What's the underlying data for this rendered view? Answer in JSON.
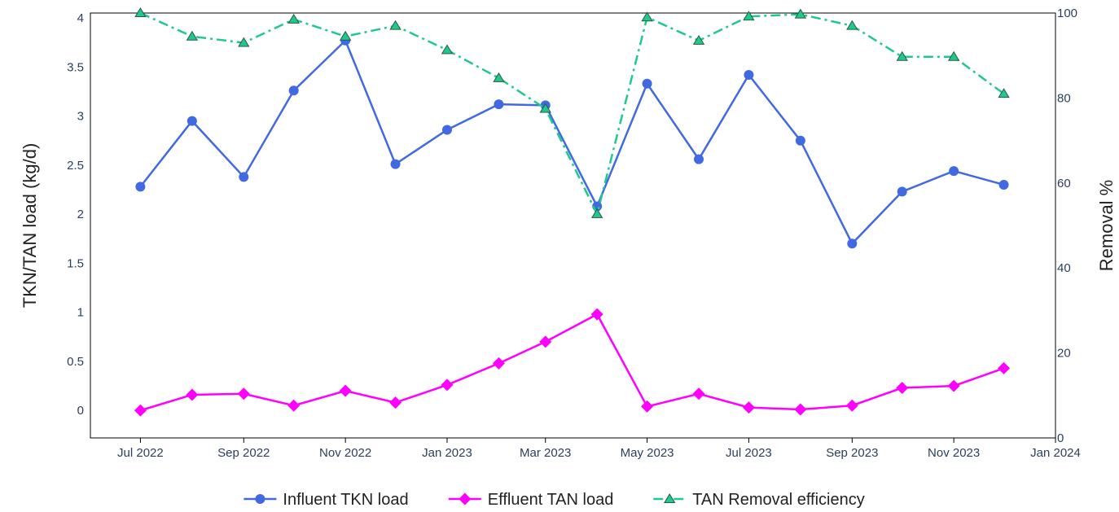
{
  "chart_data": {
    "type": "line",
    "x": [
      "2022-07-01",
      "2022-08-01",
      "2022-09-01",
      "2022-10-01",
      "2022-11-01",
      "2022-12-01",
      "2023-01-01",
      "2023-02-01",
      "2023-03-01",
      "2023-04-01",
      "2023-05-01",
      "2023-06-01",
      "2023-07-01",
      "2023-08-01",
      "2023-09-01",
      "2023-10-01",
      "2023-11-01",
      "2023-12-01"
    ],
    "x_range": [
      "2022-06-01",
      "2024-01-01"
    ],
    "x_ticks": [
      {
        "date": "2022-07-01",
        "label": "Jul 2022"
      },
      {
        "date": "2022-09-01",
        "label": "Sep 2022"
      },
      {
        "date": "2022-11-01",
        "label": "Nov 2022"
      },
      {
        "date": "2023-01-01",
        "label": "Jan 2023"
      },
      {
        "date": "2023-03-01",
        "label": "Mar 2023"
      },
      {
        "date": "2023-05-01",
        "label": "May 2023"
      },
      {
        "date": "2023-07-01",
        "label": "Jul 2023"
      },
      {
        "date": "2023-09-01",
        "label": "Sep 2023"
      },
      {
        "date": "2023-11-01",
        "label": "Nov 2023"
      },
      {
        "date": "2024-01-01",
        "label": "Jan 2024"
      }
    ],
    "ylabel": "TKN/TAN load (kg/d)",
    "ylim": [
      -0.28,
      4.05
    ],
    "yticks": [
      0,
      0.5,
      1,
      1.5,
      2,
      2.5,
      3,
      3.5,
      4
    ],
    "ytick_labels": [
      "0",
      "0.5",
      "1",
      "1.5",
      "2",
      "2.5",
      "3",
      "3.5",
      "4"
    ],
    "y2label": "Removal %",
    "y2lim": [
      0,
      100
    ],
    "y2ticks": [
      0,
      20,
      40,
      60,
      80,
      100
    ],
    "y2tick_labels": [
      "0",
      "20",
      "40",
      "60",
      "80",
      "100"
    ],
    "grid": false,
    "legend": "bottom-center",
    "series": [
      {
        "name": "Influent TKN load",
        "axis": "y",
        "color": "#4169e1",
        "marker": "circle",
        "dash": "solid",
        "values": [
          2.28,
          2.95,
          2.38,
          3.26,
          3.77,
          2.51,
          2.86,
          3.12,
          3.11,
          2.08,
          3.33,
          2.56,
          3.42,
          2.75,
          1.7,
          2.23,
          2.44,
          2.3
        ]
      },
      {
        "name": "Effluent TAN load",
        "axis": "y",
        "color": "#ff00ff",
        "marker": "diamond",
        "dash": "solid",
        "values": [
          0.0,
          0.16,
          0.17,
          0.05,
          0.2,
          0.08,
          0.26,
          0.48,
          0.7,
          0.98,
          0.04,
          0.17,
          0.03,
          0.01,
          0.05,
          0.23,
          0.25,
          0.43
        ]
      },
      {
        "name": "TAN Removal efficiency",
        "axis": "y2",
        "color": "#1fc98e",
        "marker": "triangle-up",
        "dash": "dashdot",
        "values": [
          100,
          94.5,
          93,
          98.5,
          94.5,
          97,
          91.3,
          84.7,
          77.5,
          52.7,
          99,
          93.5,
          99.2,
          99.7,
          97,
          89.7,
          89.7,
          81
        ]
      }
    ]
  }
}
